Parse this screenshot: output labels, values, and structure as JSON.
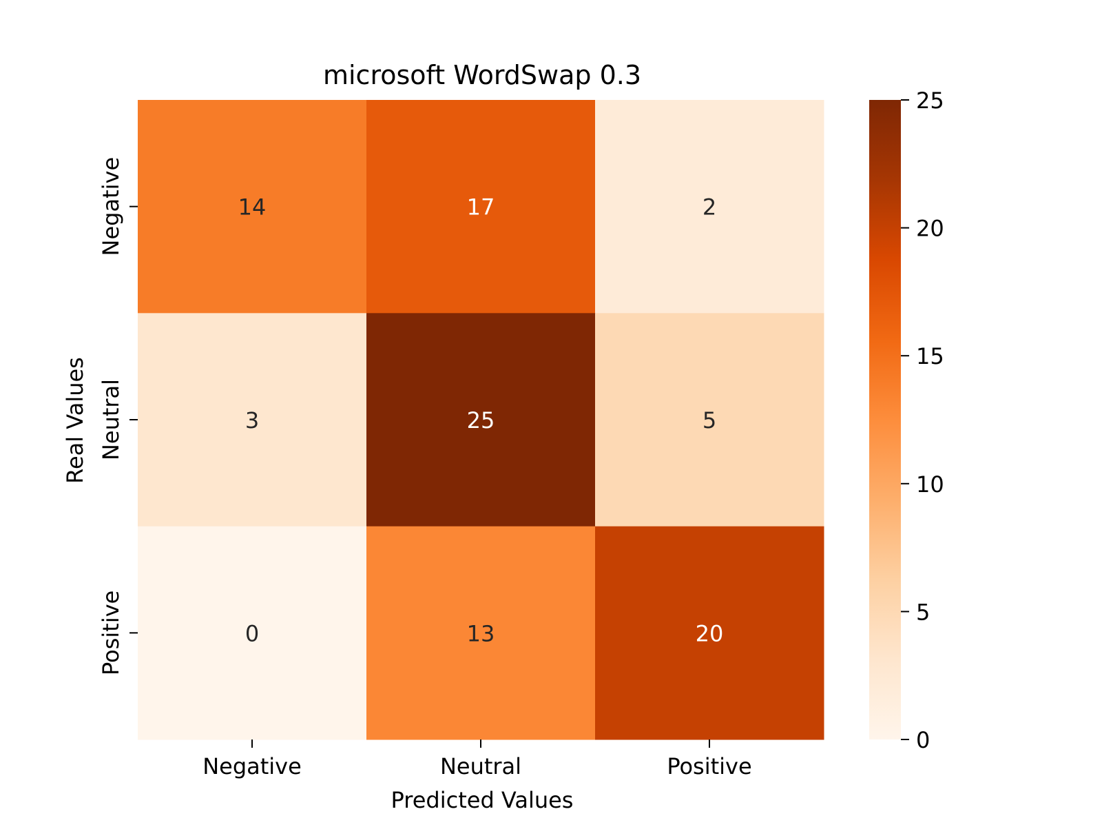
{
  "chart_data": {
    "type": "heatmap",
    "title": "microsoft WordSwap 0.3",
    "xlabel": "Predicted Values",
    "ylabel": "Real Values",
    "x_categories": [
      "Negative",
      "Neutral",
      "Positive"
    ],
    "y_categories": [
      "Negative",
      "Neutral",
      "Positive"
    ],
    "values": [
      [
        14,
        17,
        2
      ],
      [
        3,
        25,
        5
      ],
      [
        0,
        13,
        20
      ]
    ],
    "colorbar": {
      "range": [
        0,
        25
      ],
      "ticks": [
        0,
        5,
        10,
        15,
        20,
        25
      ]
    },
    "colormap": "Oranges",
    "colormap_stops": [
      "#fff5eb",
      "#fee6ce",
      "#fdd0a2",
      "#fdae6b",
      "#fd8d3c",
      "#f16913",
      "#d94801",
      "#a63603",
      "#7f2704"
    ],
    "annotation_colors": {
      "dark": "#262626",
      "light": "#ffffff"
    }
  }
}
